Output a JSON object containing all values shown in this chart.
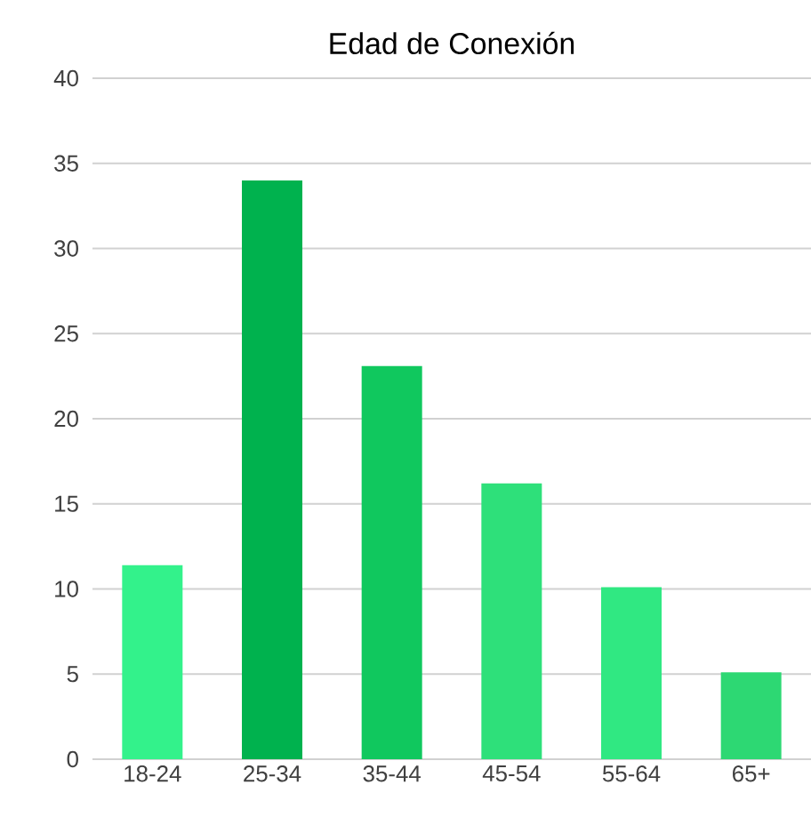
{
  "chart_data": {
    "type": "bar",
    "title": "Edad de Conexión",
    "categories": [
      "18-24",
      "25-34",
      "35-44",
      "45-54",
      "55-64",
      "65+"
    ],
    "values": [
      11.4,
      34,
      23.1,
      16.2,
      10.1,
      5.1
    ],
    "colors": [
      "#33f28b",
      "#00b24e",
      "#10c85e",
      "#2ee07a",
      "#30e882",
      "#2dd873"
    ],
    "ylim": [
      0,
      40
    ],
    "yticks": [
      0,
      5,
      10,
      15,
      20,
      25,
      30,
      35,
      40
    ],
    "grid": "y"
  }
}
